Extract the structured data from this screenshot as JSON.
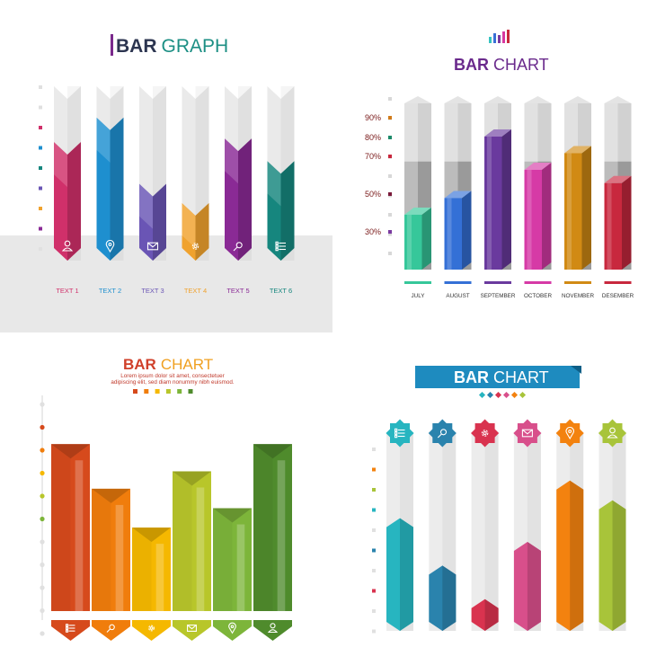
{
  "charts": {
    "tl": {
      "title_bold": "BAR",
      "title_light": "GRAPH",
      "labels": [
        "TEXT 1",
        "TEXT 2",
        "TEXT 3",
        "TEXT 4",
        "TEXT 5",
        "TEXT 6"
      ],
      "icons": [
        "user-icon",
        "location-pin-icon",
        "envelope-icon",
        "gear-icon",
        "search-icon",
        "list-icon"
      ]
    },
    "tr": {
      "title_bold": "BAR",
      "title_light": "CHART",
      "icon": "bar-chart-icon",
      "y_ticks": [
        "90%",
        "80%",
        "70%",
        "50%",
        "30%"
      ],
      "categories": [
        "JULY",
        "AUGUST",
        "SEPTEMBER",
        "OCTOBER",
        "NOVEMBER",
        "DESEMBER"
      ]
    },
    "bl": {
      "title_bold": "BAR",
      "title_light": "CHART",
      "subtitle_line1": "Lorem ipsum dolor sit amet, consectetuer",
      "subtitle_line2": "adipiscing elit, sed diam nonummy nibh euismod.",
      "icons": [
        "list-icon",
        "search-icon",
        "gear-icon",
        "envelope-icon",
        "location-pin-icon",
        "user-icon"
      ]
    },
    "br": {
      "title_bold": "BAR",
      "title_light": "CHART",
      "icons": [
        "list-icon",
        "search-icon",
        "gear-icon",
        "envelope-icon",
        "location-pin-icon",
        "user-icon"
      ]
    }
  },
  "chart_data": [
    {
      "type": "bar",
      "title": "BAR GRAPH",
      "categories": [
        "TEXT 1",
        "TEXT 2",
        "TEXT 3",
        "TEXT 4",
        "TEXT 5",
        "TEXT 6"
      ],
      "values": [
        68,
        82,
        44,
        33,
        70,
        57
      ],
      "ylim": [
        0,
        100
      ],
      "colors": [
        "#d0306a",
        "#1e8fcf",
        "#6a55b5",
        "#f0a22e",
        "#8a2a95",
        "#16867e"
      ]
    },
    {
      "type": "bar",
      "title": "BAR CHART",
      "categories": [
        "JULY",
        "AUGUST",
        "SEPTEMBER",
        "OCTOBER",
        "NOVEMBER",
        "DESEMBER"
      ],
      "values": [
        33,
        43,
        80,
        60,
        70,
        52
      ],
      "ylim": [
        0,
        100
      ],
      "colors": [
        "#36c79a",
        "#3470d6",
        "#6a3a9e",
        "#d63aa6",
        "#d18a14",
        "#c8283e"
      ]
    },
    {
      "type": "bar",
      "title": "BAR CHART",
      "values": [
        86,
        63,
        43,
        72,
        53,
        86
      ],
      "ylim": [
        0,
        100
      ],
      "colors": [
        "#d64a1c",
        "#f07d0c",
        "#f5b800",
        "#b8c62a",
        "#7db53a",
        "#4f8b2c"
      ]
    },
    {
      "type": "bar",
      "title": "BAR CHART",
      "values": [
        57,
        33,
        16,
        45,
        76,
        66
      ],
      "ylim": [
        0,
        100
      ],
      "colors": [
        "#27b5c0",
        "#2a83ad",
        "#d9334f",
        "#d84f8b",
        "#f3820f",
        "#a8c43a"
      ]
    }
  ]
}
